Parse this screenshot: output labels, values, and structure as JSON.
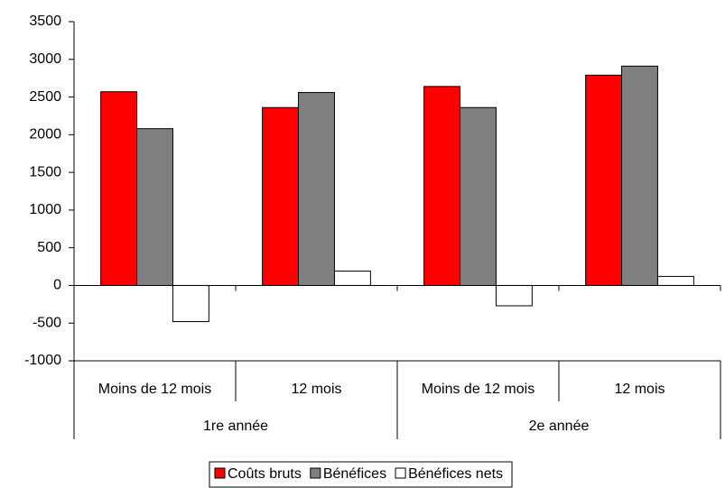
{
  "chart_data": {
    "type": "bar",
    "groups": [
      {
        "name": "1re année",
        "categories": [
          "Moins de 12 mois",
          "12 mois"
        ]
      },
      {
        "name": "2e année",
        "categories": [
          "Moins de 12 mois",
          "12 mois"
        ]
      }
    ],
    "series": [
      {
        "name": "Coûts bruts",
        "color": "#ff0000",
        "values": [
          2570,
          2360,
          2640,
          2790
        ]
      },
      {
        "name": "Bénéfices",
        "color": "#808080",
        "values": [
          2080,
          2560,
          2360,
          2910
        ]
      },
      {
        "name": "Bénéfices nets",
        "color": "#ffffff",
        "values": [
          -480,
          190,
          -270,
          120
        ]
      }
    ],
    "ylim": [
      -1000,
      3500
    ],
    "yticks": [
      -1000,
      -500,
      0,
      500,
      1000,
      1500,
      2000,
      2500,
      3000,
      3500
    ],
    "grid": false,
    "legend": "bottom"
  }
}
